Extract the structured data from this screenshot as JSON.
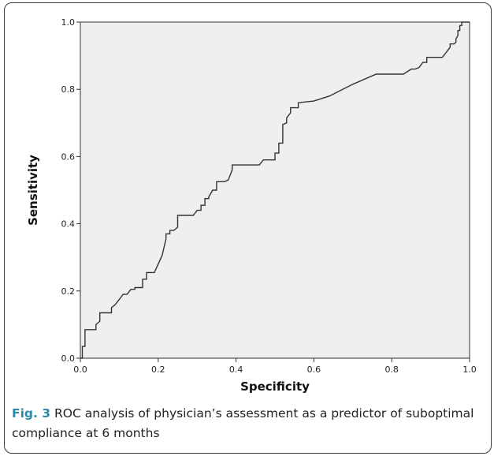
{
  "caption": {
    "label": "Fig. 3",
    "text": " ROC analysis of physician’s assessment as a predictor of suboptimal compliance at 6 months"
  },
  "colors": {
    "plot_background": "#efefef",
    "curve": "#333333",
    "label_accent": "#2c8aaa"
  },
  "chart_data": {
    "type": "line",
    "title": "",
    "xlabel": "Specificity",
    "ylabel": "Sensitivity",
    "xlim": [
      0.0,
      1.0
    ],
    "ylim": [
      0.0,
      1.0
    ],
    "xticks": [
      "0.0",
      "0.2",
      "0.4",
      "0.6",
      "0.8",
      "1.0"
    ],
    "yticks": [
      "0.0",
      "0.2",
      "0.4",
      "0.6",
      "0.8",
      "1.0"
    ],
    "grid": false,
    "legend": "none",
    "series": [
      {
        "x": [
          0.0,
          0.005,
          0.005,
          0.012,
          0.012,
          0.04,
          0.04,
          0.05,
          0.05,
          0.08,
          0.08,
          0.09,
          0.1,
          0.11,
          0.12,
          0.13,
          0.14,
          0.14,
          0.16,
          0.16,
          0.17,
          0.17,
          0.19,
          0.2,
          0.21,
          0.22,
          0.22,
          0.23,
          0.23,
          0.24,
          0.25,
          0.25,
          0.26,
          0.26,
          0.29,
          0.3,
          0.31,
          0.31,
          0.32,
          0.32,
          0.33,
          0.33,
          0.34,
          0.35,
          0.35,
          0.37,
          0.38,
          0.39,
          0.39,
          0.46,
          0.47,
          0.5,
          0.5,
          0.51,
          0.51,
          0.52,
          0.52,
          0.53,
          0.53,
          0.54,
          0.54,
          0.56,
          0.56,
          0.6,
          0.64,
          0.7,
          0.76,
          0.82,
          0.83,
          0.85,
          0.86,
          0.87,
          0.87,
          0.88,
          0.89,
          0.89,
          0.93,
          0.94,
          0.95,
          0.95,
          0.96,
          0.965,
          0.965,
          0.97,
          0.97,
          0.975,
          0.975,
          0.98,
          0.98,
          0.99,
          1.0
        ],
        "y": [
          0.0,
          0.0,
          0.035,
          0.035,
          0.085,
          0.085,
          0.1,
          0.11,
          0.135,
          0.135,
          0.15,
          0.16,
          0.175,
          0.19,
          0.19,
          0.205,
          0.205,
          0.21,
          0.21,
          0.235,
          0.235,
          0.255,
          0.255,
          0.28,
          0.305,
          0.355,
          0.37,
          0.37,
          0.38,
          0.38,
          0.39,
          0.425,
          0.425,
          0.425,
          0.425,
          0.44,
          0.44,
          0.455,
          0.455,
          0.475,
          0.475,
          0.48,
          0.5,
          0.5,
          0.525,
          0.525,
          0.53,
          0.56,
          0.575,
          0.575,
          0.59,
          0.59,
          0.61,
          0.61,
          0.64,
          0.64,
          0.695,
          0.7,
          0.715,
          0.73,
          0.745,
          0.745,
          0.76,
          0.765,
          0.78,
          0.815,
          0.845,
          0.845,
          0.845,
          0.86,
          0.86,
          0.865,
          0.865,
          0.88,
          0.88,
          0.895,
          0.895,
          0.91,
          0.925,
          0.935,
          0.935,
          0.94,
          0.95,
          0.96,
          0.975,
          0.975,
          0.99,
          0.99,
          1.0,
          1.0,
          1.0
        ]
      }
    ]
  }
}
